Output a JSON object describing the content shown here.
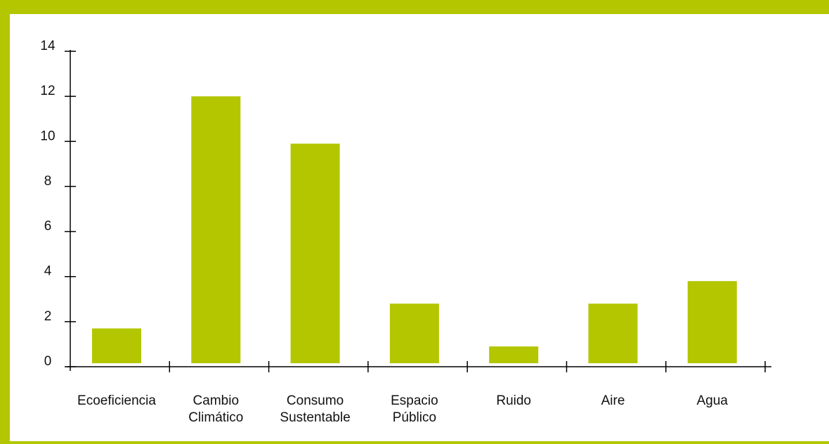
{
  "colors": {
    "frame": "#b3c600",
    "bar": "#b3c600",
    "axis": "#000000",
    "background": "#ffffff"
  },
  "chart_data": {
    "type": "bar",
    "title": "",
    "xlabel": "",
    "ylabel": "",
    "ylim": [
      0,
      14
    ],
    "yticks": [
      0,
      2,
      4,
      6,
      8,
      10,
      12,
      14
    ],
    "grid": false,
    "categories": [
      [
        "Ecoeficiencia"
      ],
      [
        "Cambio",
        "Climático"
      ],
      [
        "Consumo",
        "Sustentable"
      ],
      [
        "Espacio",
        "Público"
      ],
      [
        "Ruido"
      ],
      [
        "Aire"
      ],
      [
        "Agua"
      ]
    ],
    "values": [
      1.7,
      12.0,
      9.9,
      2.8,
      0.9,
      2.8,
      3.8
    ]
  }
}
